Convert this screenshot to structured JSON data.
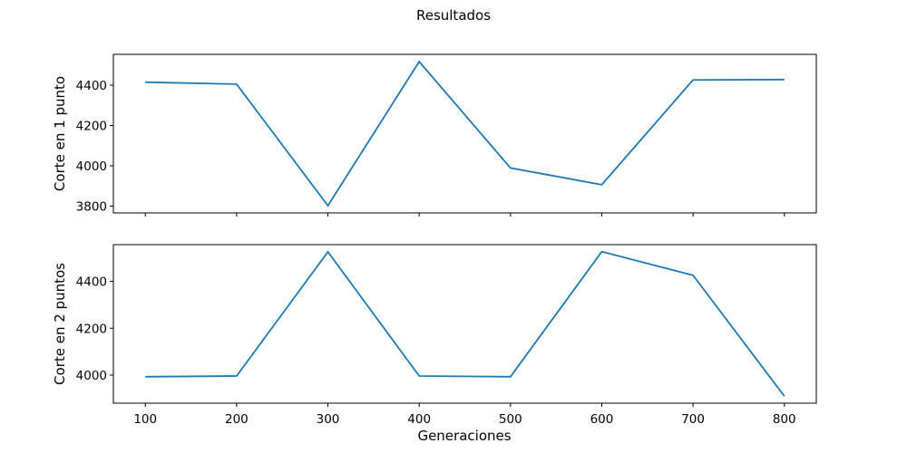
{
  "chart_data": {
    "type": "line",
    "title": "Resultados",
    "xlabel": "Generaciones",
    "sharex": true,
    "x": [
      100,
      200,
      300,
      400,
      500,
      600,
      700,
      800
    ],
    "xticks": [
      "100",
      "200",
      "300",
      "400",
      "500",
      "600",
      "700",
      "800"
    ],
    "xlim": [
      65,
      835
    ],
    "line_color": "#1f77b4",
    "grid": false,
    "subplots": [
      {
        "ylabel": "Corte en 1 punto",
        "y": [
          4415,
          4405,
          3802,
          4517,
          3989,
          3906,
          4426,
          4428
        ],
        "ylim": [
          3766,
          4553
        ],
        "yticks": [
          "3800",
          "4000",
          "4200",
          "4400"
        ]
      },
      {
        "ylabel": "Corte en 2 puntos",
        "y": [
          3993,
          3996,
          4526,
          3996,
          3993,
          4527,
          4426,
          3910
        ],
        "ylim": [
          3880,
          4557
        ],
        "yticks": [
          "4000",
          "4200",
          "4400"
        ]
      }
    ]
  }
}
